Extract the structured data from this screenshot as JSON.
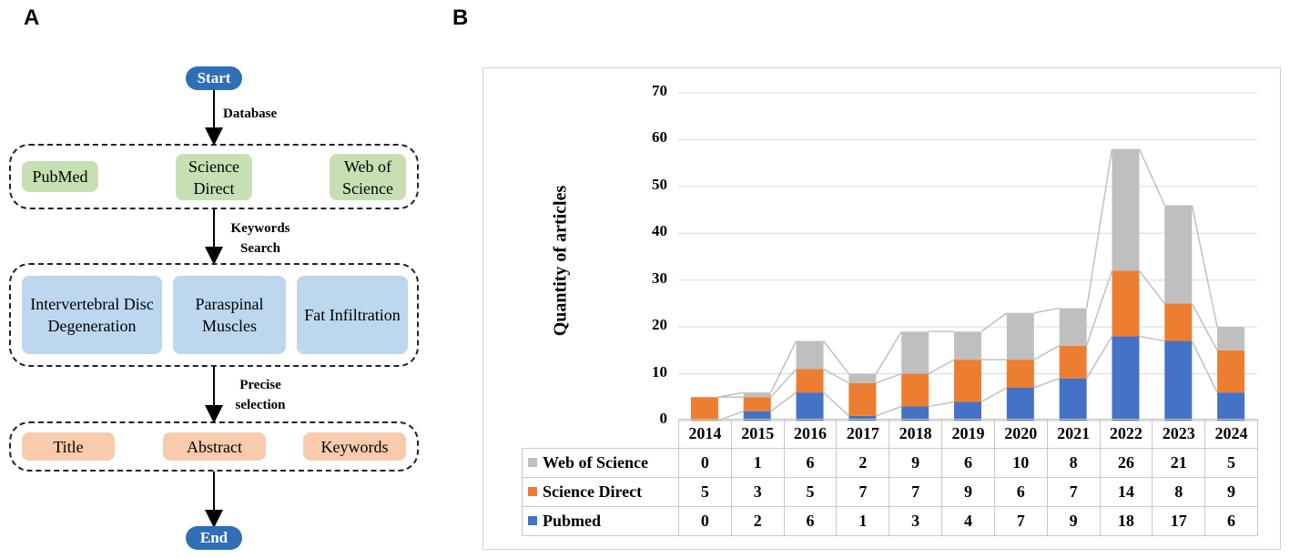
{
  "panels": {
    "a": "A",
    "b": "B"
  },
  "flow": {
    "start": "Start",
    "end": "End",
    "steps": [
      {
        "label": "Database"
      },
      {
        "label": "Keywords Search"
      },
      {
        "label": "Precise selection"
      }
    ],
    "databases": [
      "PubMed",
      "Science Direct",
      "Web of Science"
    ],
    "keywords": [
      "Intervertebral Disc Degeneration",
      "Paraspinal Muscles",
      "Fat Infiltration"
    ],
    "selection": [
      "Title",
      "Abstract",
      "Keywords"
    ],
    "colors": {
      "oval": "#2e6fb5",
      "green": "#c6e0b4",
      "blue": "#bdd7ee",
      "peach": "#f8cbad"
    }
  },
  "chart_data": {
    "type": "bar",
    "stacked": true,
    "title": "",
    "ylabel": "Quantity of articles",
    "xlabel": "",
    "ylim": [
      0,
      70
    ],
    "yticks": [
      0,
      10,
      20,
      30,
      40,
      50,
      60,
      70
    ],
    "categories": [
      "2014",
      "2015",
      "2016",
      "2017",
      "2018",
      "2019",
      "2020",
      "2021",
      "2022",
      "2023",
      "2024"
    ],
    "series": [
      {
        "name": "Pubmed",
        "color": "#4472c4",
        "values": [
          0,
          2,
          6,
          1,
          3,
          4,
          7,
          9,
          18,
          17,
          6
        ]
      },
      {
        "name": "Science Direct",
        "color": "#ed7d31",
        "values": [
          5,
          3,
          5,
          7,
          7,
          9,
          6,
          7,
          14,
          8,
          9
        ]
      },
      {
        "name": "Web of Science",
        "color": "#bfbfbf",
        "values": [
          0,
          1,
          6,
          2,
          9,
          6,
          10,
          8,
          26,
          21,
          5
        ]
      }
    ],
    "table_row_order": [
      "Web of Science",
      "Science Direct",
      "Pubmed"
    ],
    "series_lines": true,
    "legend": "data-table"
  }
}
